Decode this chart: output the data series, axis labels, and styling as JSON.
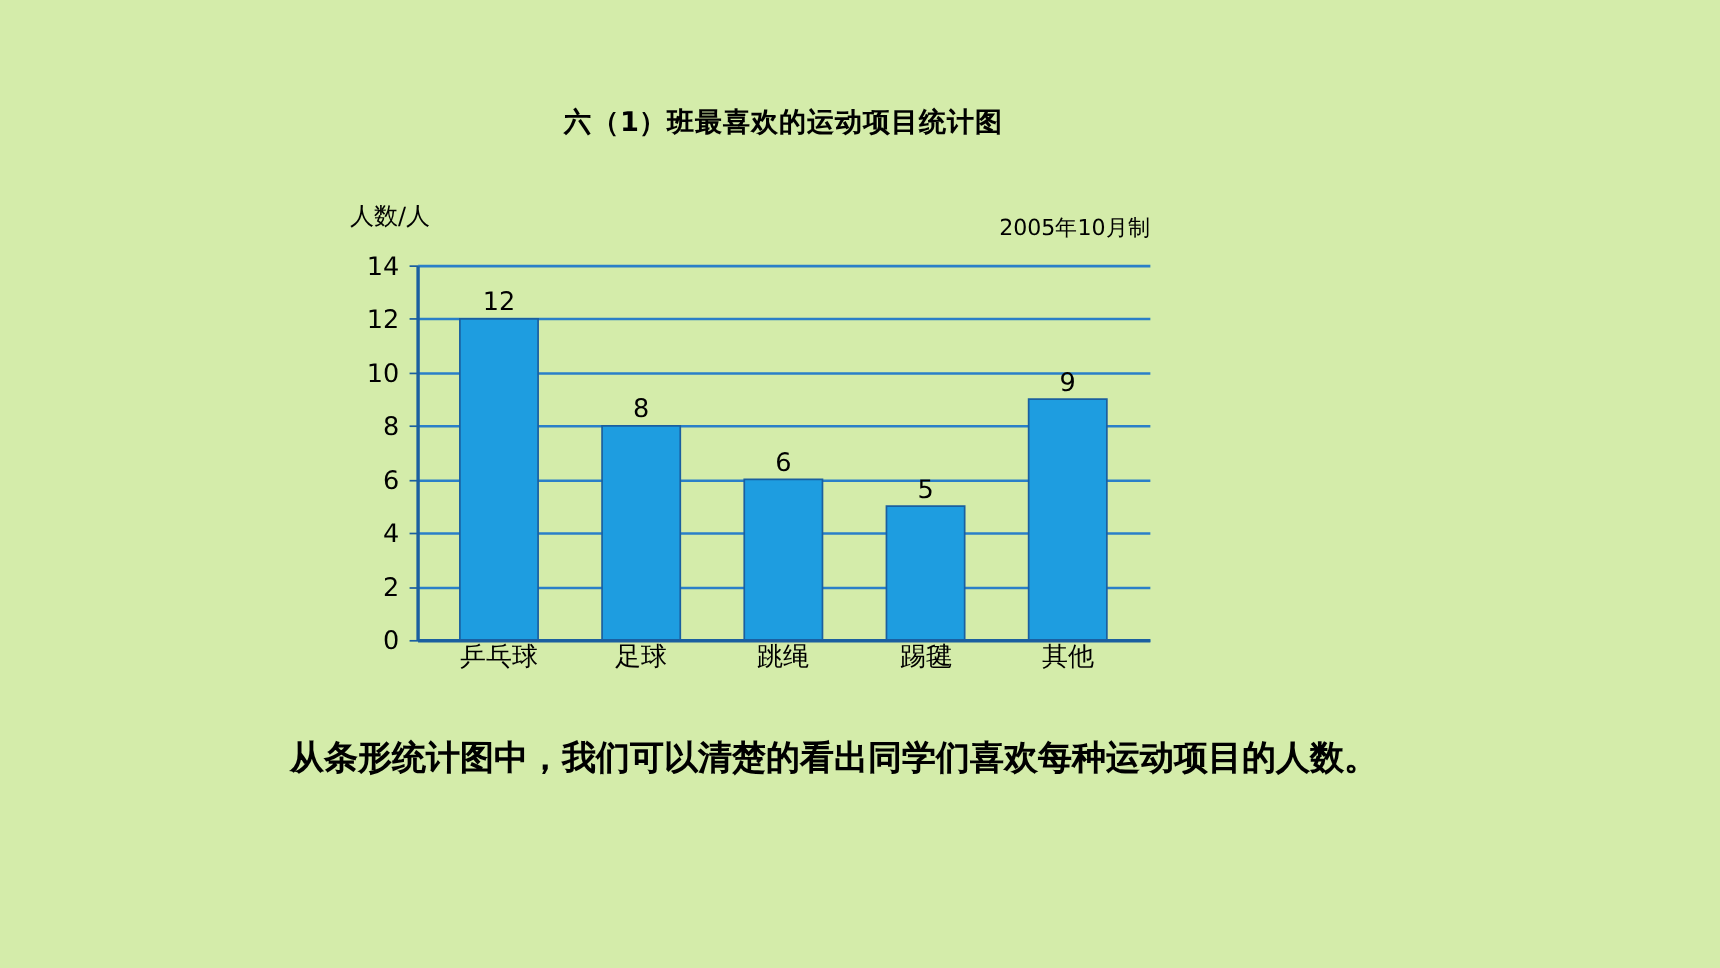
{
  "chart_data": {
    "type": "bar",
    "title": "六（1）班最喜欢的运动项目统计图",
    "ylabel": "人数/人",
    "categories": [
      "乒乓球",
      "足球",
      "跳绳",
      "踢毽",
      "其他"
    ],
    "values": [
      12,
      8,
      6,
      5,
      9
    ],
    "color": "#1e9de0",
    "ylim": [
      0,
      14
    ],
    "yticks": [
      0,
      2,
      4,
      6,
      8,
      10,
      12,
      14
    ],
    "grid": "y",
    "data_labels": true,
    "annotations": [
      "2005年10月制",
      "从条形统计图中，我们可以清楚的看出同学们喜欢每种运动项目的人数。"
    ]
  }
}
